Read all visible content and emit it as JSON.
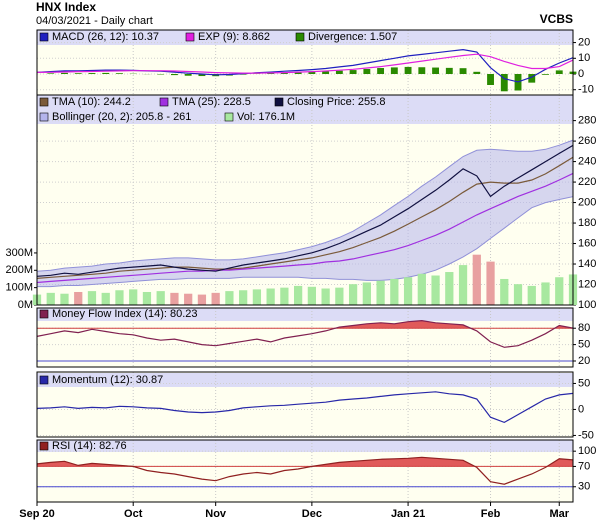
{
  "header": {
    "title": "HNX Index",
    "subtitle": "04/03/2021 - Daily chart",
    "source": "VCBS"
  },
  "chart_data": [
    {
      "type": "line",
      "ylim": [
        -14,
        28
      ],
      "yticks": [
        -10,
        0,
        10,
        20
      ],
      "grid": true,
      "series": [
        {
          "name": "MACD (26, 12): 10.37",
          "type": "line",
          "color": "#2020c0",
          "values": [
            1,
            1.5,
            2,
            2,
            2.2,
            2.5,
            2.5,
            2.3,
            2,
            1.8,
            1.2,
            0.5,
            0,
            -0.5,
            -0.3,
            0.2,
            0.8,
            1.2,
            1.8,
            2.2,
            2.8,
            3.5,
            4.5,
            5.5,
            7,
            8.5,
            10,
            11.5,
            12.5,
            13.5,
            14.5,
            15.5,
            14,
            4,
            -3,
            -5,
            -2,
            3,
            7,
            10.37
          ]
        },
        {
          "name": "EXP (9): 8.862",
          "type": "line",
          "color": "#e020e0",
          "values": [
            1,
            1.1,
            1.3,
            1.5,
            1.6,
            1.8,
            2,
            2.1,
            2.1,
            2.1,
            1.9,
            1.6,
            1.3,
            0.9,
            0.7,
            0.6,
            0.6,
            0.7,
            0.9,
            1.2,
            1.5,
            1.9,
            2.4,
            3,
            3.8,
            4.7,
            5.8,
            7,
            8.2,
            9.4,
            10.6,
            11.8,
            12.6,
            11,
            8,
            5.5,
            3.5,
            3.5,
            4.7,
            8.862
          ]
        },
        {
          "name": "Divergence: 1.507",
          "type": "bar",
          "color": "#2a8a00",
          "values": [
            0,
            0.4,
            0.7,
            0.5,
            0.6,
            0.7,
            0.5,
            0.2,
            -0.1,
            -0.3,
            -0.7,
            -1.1,
            -1.3,
            -1.4,
            -1,
            -0.4,
            0.2,
            0.5,
            0.9,
            1,
            1.3,
            1.6,
            2.1,
            2.5,
            3.2,
            3.8,
            4.2,
            4.5,
            4.3,
            4.1,
            3.9,
            3.7,
            1.4,
            -7,
            -11,
            -10.5,
            -5.5,
            -0.5,
            2.3,
            1.507
          ]
        }
      ]
    },
    {
      "type": "line",
      "ylim": [
        100,
        305
      ],
      "yticks": [
        100,
        120,
        140,
        160,
        180,
        200,
        220,
        240,
        260,
        280
      ],
      "grid": true,
      "y2lim": [
        0,
        1210
      ],
      "y2ticks": [
        {
          "value": 0,
          "label": "0M"
        },
        {
          "value": 100,
          "label": "100M"
        },
        {
          "value": 200,
          "label": "200M"
        },
        {
          "value": 300,
          "label": "300M"
        }
      ],
      "series": [
        {
          "name": "TMA (10): 244.2",
          "type": "line",
          "color": "#7a5a3a",
          "values": [
            126,
            127,
            128,
            129,
            130,
            131,
            133,
            134,
            135,
            136,
            137,
            137,
            136,
            135,
            135,
            136,
            138,
            140,
            142,
            144,
            146,
            149,
            152,
            156,
            161,
            166,
            172,
            179,
            186,
            193,
            201,
            210,
            218,
            220,
            219,
            219,
            222,
            228,
            236,
            244.2
          ]
        },
        {
          "name": "TMA (25): 228.5",
          "type": "line",
          "color": "#a030e0",
          "values": [
            122,
            123,
            124,
            125,
            126,
            127,
            128,
            129,
            130,
            131,
            132,
            133,
            133,
            134,
            134,
            135,
            136,
            137,
            138,
            139,
            140,
            142,
            143,
            145,
            148,
            151,
            154,
            158,
            163,
            168,
            174,
            181,
            188,
            194,
            200,
            206,
            211,
            216,
            222,
            228.5
          ]
        },
        {
          "name": "Closing Price: 255.8",
          "type": "line",
          "color": "#101040",
          "values": [
            128,
            129,
            131,
            130,
            132,
            134,
            136,
            137,
            138,
            139,
            137,
            135,
            134,
            133,
            136,
            139,
            141,
            143,
            145,
            148,
            151,
            155,
            160,
            166,
            172,
            178,
            186,
            194,
            203,
            212,
            222,
            233,
            226,
            206,
            216,
            224,
            232,
            240,
            248,
            255.8
          ]
        },
        {
          "name": "Bollinger (20, 2): 205.8 - 261",
          "type": "band",
          "color": "#b4b4ec",
          "upper": [
            133,
            134,
            136,
            137,
            138,
            140,
            141,
            143,
            144,
            145,
            146,
            146,
            145,
            144,
            144,
            145,
            147,
            149,
            151,
            154,
            157,
            161,
            166,
            172,
            180,
            188,
            197,
            206,
            216,
            225,
            235,
            245,
            251,
            252,
            251,
            250,
            250,
            252,
            256,
            261
          ],
          "lower": [
            118,
            118,
            119,
            119,
            120,
            121,
            122,
            123,
            124,
            125,
            125,
            126,
            126,
            126,
            126,
            127,
            127,
            127,
            127,
            127,
            126,
            126,
            125,
            125,
            124,
            124,
            125,
            127,
            130,
            134,
            140,
            147,
            155,
            165,
            175,
            185,
            195,
            200,
            203,
            205.8
          ]
        },
        {
          "name": "Vol: 176.1M",
          "type": "bar",
          "axis": "y2",
          "color": "#a8e8a0",
          "down_color": "#e8a0a0",
          "values": [
            60,
            70,
            65,
            75,
            80,
            70,
            85,
            90,
            75,
            80,
            70,
            65,
            60,
            70,
            80,
            85,
            90,
            95,
            100,
            110,
            105,
            95,
            100,
            120,
            130,
            140,
            150,
            160,
            180,
            170,
            190,
            230,
            290,
            250,
            150,
            120,
            110,
            130,
            160,
            176.1
          ]
        }
      ]
    },
    {
      "type": "line",
      "ylim": [
        9,
        117
      ],
      "yticks": [
        20,
        50,
        80
      ],
      "grid": true,
      "thresholds": [
        {
          "value": 80,
          "color": "#d04040",
          "fill": "#e05a5a"
        },
        {
          "value": 20,
          "color": "#4848d0"
        }
      ],
      "series": [
        {
          "name": "Money Flow Index (14): 80.23",
          "type": "line",
          "color": "#802050",
          "values": [
            65,
            70,
            75,
            72,
            78,
            74,
            70,
            68,
            62,
            58,
            60,
            55,
            50,
            48,
            52,
            56,
            60,
            55,
            62,
            66,
            70,
            75,
            82,
            85,
            88,
            90,
            88,
            92,
            94,
            90,
            88,
            86,
            75,
            55,
            45,
            48,
            58,
            70,
            85,
            80.23
          ]
        }
      ]
    },
    {
      "type": "line",
      "ylim": [
        -53,
        72
      ],
      "yticks": [
        -50,
        0,
        50
      ],
      "grid": true,
      "series": [
        {
          "name": "Momentum (12): 30.87",
          "type": "line",
          "color": "#2828a8",
          "values": [
            2,
            3,
            5,
            2,
            4,
            3,
            6,
            5,
            3,
            2,
            -2,
            -5,
            -6,
            -5,
            -2,
            3,
            5,
            7,
            8,
            10,
            12,
            14,
            18,
            20,
            22,
            25,
            28,
            30,
            32,
            34,
            30,
            28,
            20,
            -15,
            -25,
            -10,
            5,
            20,
            28,
            30.87
          ]
        }
      ]
    },
    {
      "type": "line",
      "ylim": [
        0,
        122
      ],
      "yticks": [
        30,
        70,
        100
      ],
      "grid": true,
      "thresholds": [
        {
          "value": 70,
          "color": "#d04040",
          "fill": "#e05a5a"
        },
        {
          "value": 30,
          "color": "#4848d0"
        }
      ],
      "categories": [
        "Sep 20",
        null,
        null,
        null,
        null,
        null,
        null,
        "Oct",
        null,
        null,
        null,
        null,
        null,
        "Nov",
        null,
        null,
        null,
        null,
        null,
        null,
        "Dec",
        null,
        null,
        null,
        null,
        null,
        null,
        "Jan 21",
        null,
        null,
        null,
        null,
        null,
        "Feb",
        null,
        null,
        null,
        null,
        "Mar",
        null
      ],
      "series": [
        {
          "name": "RSI (14): 82.76",
          "type": "line",
          "color": "#902020",
          "values": [
            75,
            78,
            80,
            72,
            76,
            74,
            72,
            70,
            62,
            58,
            55,
            50,
            45,
            42,
            50,
            55,
            58,
            55,
            62,
            65,
            70,
            74,
            78,
            80,
            82,
            84,
            85,
            86,
            88,
            86,
            84,
            82,
            68,
            40,
            35,
            45,
            55,
            68,
            85,
            82.76
          ]
        }
      ]
    }
  ]
}
